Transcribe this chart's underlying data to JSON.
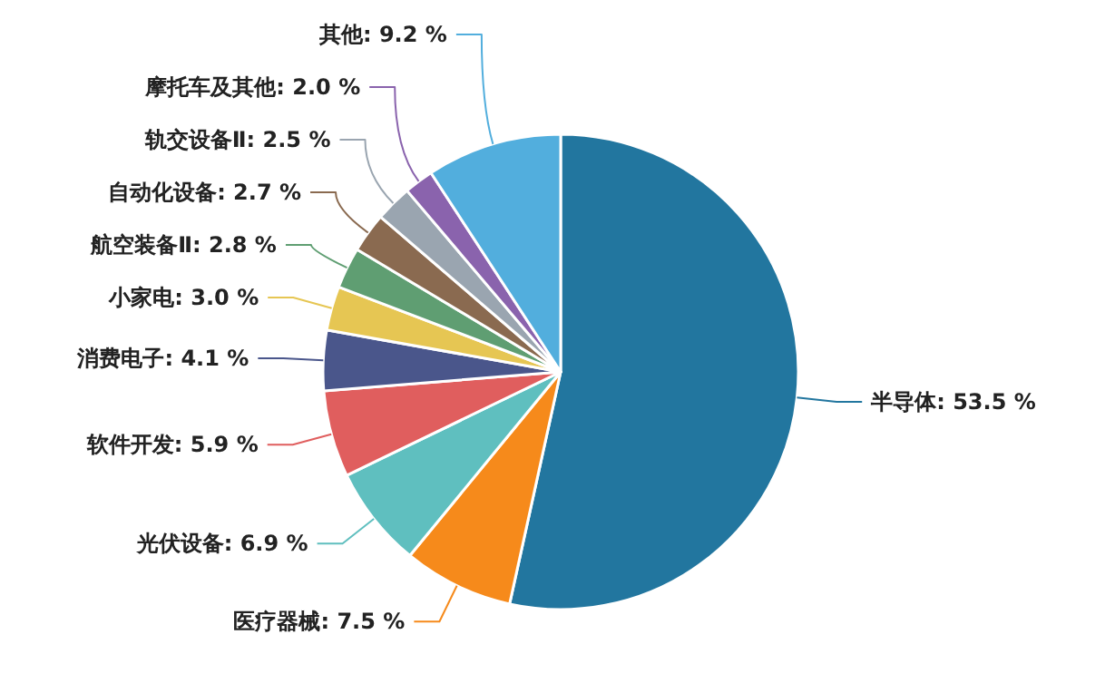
{
  "chart_data": {
    "type": "pie",
    "categories": [
      "半导体",
      "医疗器械",
      "光伏设备",
      "软件开发",
      "消费电子",
      "小家电",
      "航空装备Ⅱ",
      "自动化设备",
      "轨交设备Ⅱ",
      "摩托车及其他",
      "其他"
    ],
    "values": [
      53.5,
      7.5,
      6.9,
      5.9,
      4.1,
      3.0,
      2.8,
      2.7,
      2.5,
      2.0,
      9.2
    ],
    "value_labels": [
      "53.5 %",
      "7.5 %",
      "6.9 %",
      "5.9 %",
      "4.1 %",
      "3.0 %",
      "2.8 %",
      "2.7 %",
      "2.5 %",
      "2.0 %",
      "9.2 %"
    ],
    "colors": [
      "#22769f",
      "#f68a1b",
      "#5fbfbf",
      "#e05e5e",
      "#4a568b",
      "#e6c653",
      "#5f9e72",
      "#8a6a50",
      "#9aa5b0",
      "#8a63ad",
      "#52aedd"
    ]
  }
}
